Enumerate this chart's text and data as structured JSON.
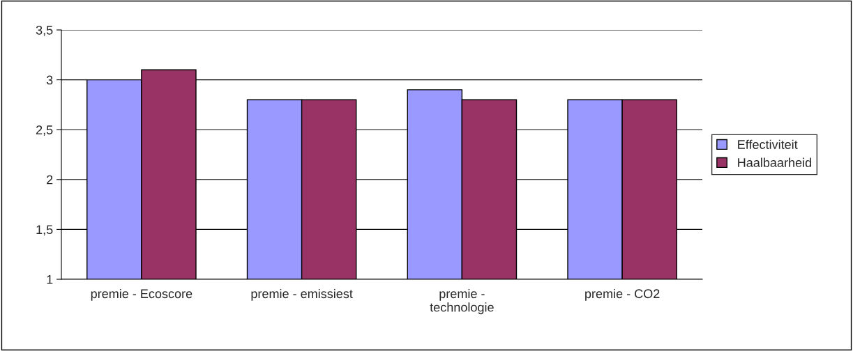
{
  "chart_data": {
    "type": "bar",
    "categories": [
      "premie - Ecoscore",
      "premie - emissiest",
      "premie -\ntechnologie",
      "premie - CO2"
    ],
    "series": [
      {
        "name": "Effectiviteit",
        "color": "#9999ff",
        "values": [
          3.0,
          2.8,
          2.9,
          2.8
        ]
      },
      {
        "name": "Haalbaarheid",
        "color": "#993366",
        "values": [
          3.1,
          2.8,
          2.8,
          2.8
        ]
      }
    ],
    "ylim": [
      1,
      3.5
    ],
    "yticks": [
      1,
      {
        "value": 1.5,
        "label": "1,5"
      },
      2,
      {
        "value": 2.5,
        "label": "2,5"
      },
      3,
      {
        "value": 3.5,
        "label": "3,5"
      }
    ],
    "grid": "y",
    "legend": "right"
  }
}
